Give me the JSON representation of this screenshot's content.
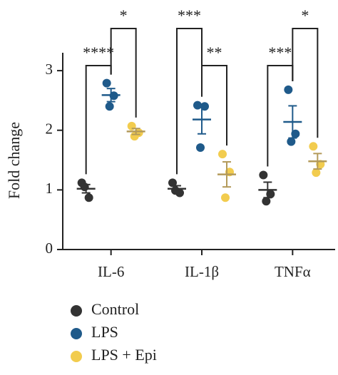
{
  "chart_data": {
    "type": "dot",
    "y_label": "Fold change",
    "categories": [
      "IL-6",
      "IL-1β",
      "TNFα"
    ],
    "ylim": [
      0,
      3.3
    ],
    "yticks": [
      0,
      1,
      2,
      3
    ],
    "series": [
      {
        "name": "Control",
        "color": "#333333",
        "line_color": "#333333",
        "points": [
          [
            1.12,
            0.87,
            1.05
          ],
          [
            1.12,
            0.95,
            0.99
          ],
          [
            1.25,
            0.93,
            0.81
          ]
        ],
        "mean": [
          1.02,
          1.02,
          1.0
        ],
        "sem": [
          0.07,
          0.05,
          0.13
        ]
      },
      {
        "name": "LPS",
        "color": "#1f5a8a",
        "line_color": "#1f5a8a",
        "points": [
          [
            2.79,
            2.58,
            2.4
          ],
          [
            2.42,
            2.4,
            1.71
          ],
          [
            2.68,
            1.94,
            1.81
          ]
        ],
        "mean": [
          2.59,
          2.18,
          2.14
        ],
        "sem": [
          0.11,
          0.24,
          0.27
        ]
      },
      {
        "name": "LPS + Epi",
        "color": "#f2cc4e",
        "line_color": "#b39a5a",
        "points": [
          [
            2.07,
            1.96,
            1.9
          ],
          [
            1.6,
            1.3,
            0.87
          ],
          [
            1.73,
            1.43,
            1.29
          ]
        ],
        "mean": [
          1.98,
          1.26,
          1.48
        ],
        "sem": [
          0.05,
          0.21,
          0.13
        ]
      }
    ],
    "annotations": [
      {
        "text": "****"
      },
      {
        "text": "*"
      },
      {
        "text": "***"
      },
      {
        "text": "**"
      },
      {
        "text": "***"
      },
      {
        "text": "*"
      }
    ]
  }
}
